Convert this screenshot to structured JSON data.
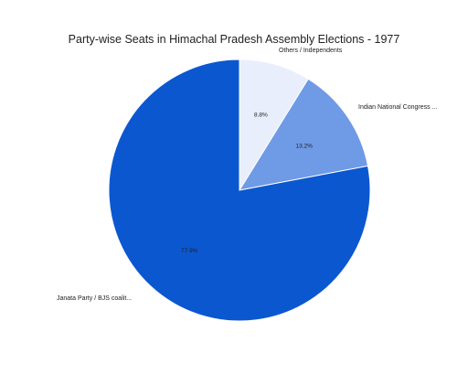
{
  "chart_data": {
    "type": "pie",
    "title": "Party-wise Seats in Himachal Pradesh Assembly Elections - 1977",
    "slices": [
      {
        "label": "Others / Independents",
        "value": 8.8,
        "value_label": "8.8%",
        "color": "#e8eefb"
      },
      {
        "label": "Indian National Congress ...",
        "value": 13.2,
        "value_label": "13.2%",
        "color": "#6f9ae6"
      },
      {
        "label": "Janata Party / BJS coalit...",
        "value": 77.9,
        "value_label": "77.9%",
        "color": "#0b57d0"
      }
    ],
    "legend": "none"
  }
}
